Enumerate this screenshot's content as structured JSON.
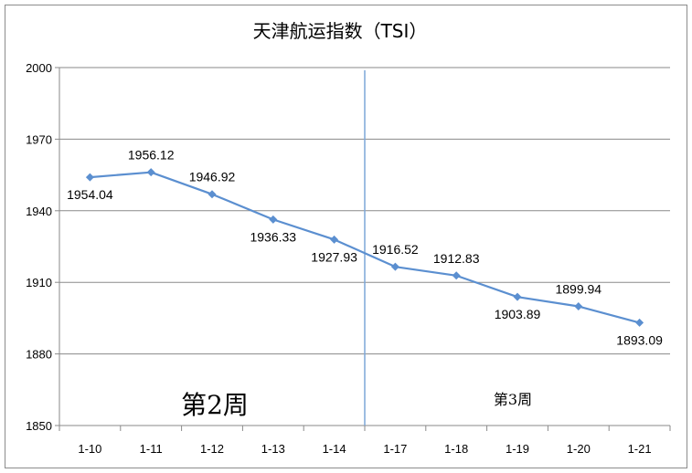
{
  "chart_data": {
    "type": "line",
    "title": "天津航运指数（TSI）",
    "categories": [
      "1-10",
      "1-11",
      "1-12",
      "1-13",
      "1-14",
      "1-17",
      "1-18",
      "1-19",
      "1-20",
      "1-21"
    ],
    "series": [
      {
        "values": [
          1954.04,
          1956.12,
          1946.92,
          1936.33,
          1927.93,
          1916.52,
          1912.83,
          1903.89,
          1899.94,
          1893.09
        ],
        "labels": [
          "1954.04",
          "1956.12",
          "1946.92",
          "1936.33",
          "1927.93",
          "1916.52",
          "1912.83",
          "1903.89",
          "1899.94",
          "1893.09"
        ],
        "label_side": [
          "below",
          "above",
          "above",
          "below",
          "below",
          "above",
          "above",
          "below",
          "above",
          "below"
        ],
        "color": "#5b8fd0"
      }
    ],
    "y_ticks": [
      "1850",
      "1880",
      "1910",
      "1940",
      "1970",
      "2000"
    ],
    "ylim": [
      1850,
      2000
    ],
    "grid": true,
    "legend": "none",
    "annotations": [
      {
        "text": "第2周",
        "style": "large"
      },
      {
        "text": "第3周",
        "style": "small"
      }
    ],
    "divider_between": [
      "1-14",
      "1-17"
    ]
  }
}
